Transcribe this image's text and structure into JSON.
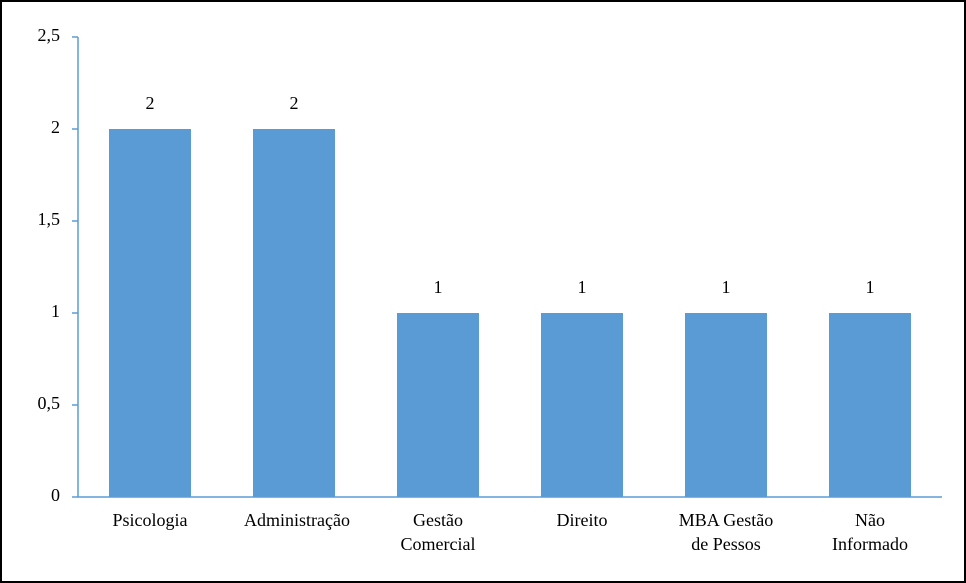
{
  "chart_data": {
    "type": "bar",
    "categories": [
      "Psicologia",
      "Administração",
      "Gestão Comercial",
      "Direito",
      "MBA Gestão de Pessos",
      "Não Informado"
    ],
    "values": [
      2,
      2,
      1,
      1,
      1,
      1
    ],
    "color": "#5b9bd5",
    "ylim": [
      0,
      2.5
    ],
    "yticks": [
      0,
      {
        "value": 0.5,
        "label": "0,5"
      },
      1,
      {
        "value": 1.5,
        "label": "1,5"
      },
      2,
      {
        "value": 2.5,
        "label": "2,5"
      }
    ],
    "grid": false
  }
}
